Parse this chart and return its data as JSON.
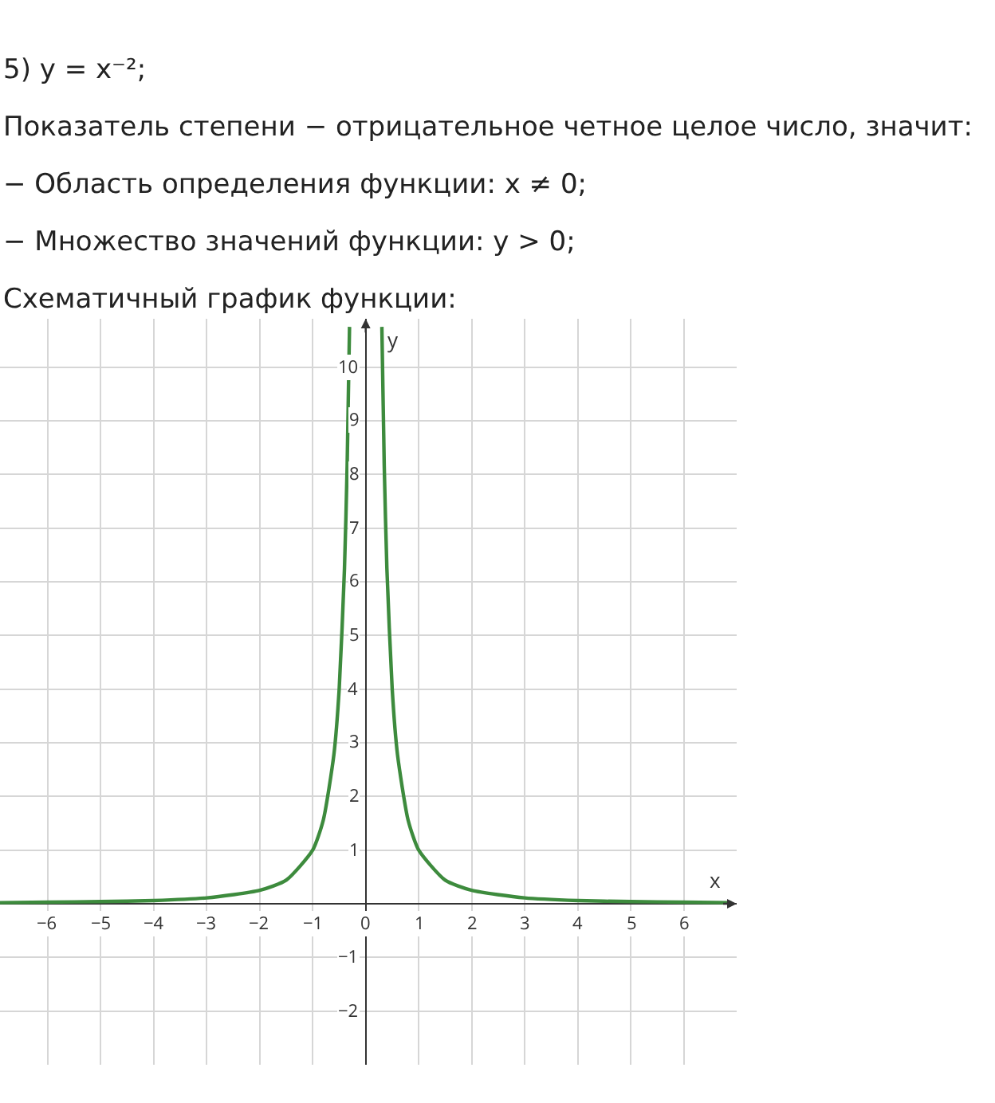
{
  "chart_data": {
    "type": "line",
    "title": "5) y = x⁻²;",
    "annotations": [
      "Показатель степени − отрицательное четное целое число, значит:",
      "− Область определения функции:  x ≠ 0;",
      "− Множество значений функции:  y > 0;",
      "Схематичный график функции:"
    ],
    "xlabel": "x",
    "ylabel": "y",
    "x": [
      -6.9,
      -6,
      -5,
      -4,
      -3,
      -2,
      -1.5,
      -1,
      -0.8,
      -0.6,
      -0.5,
      -0.4,
      -0.35,
      -0.305,
      0,
      0.305,
      0.35,
      0.4,
      0.5,
      0.6,
      0.8,
      1,
      1.5,
      2,
      3,
      4,
      5,
      6,
      6.9
    ],
    "series": [
      {
        "color": "#3d8b3d",
        "values": [
          0.02,
          0.03,
          0.04,
          0.06,
          0.11,
          0.25,
          0.44,
          1,
          1.56,
          2.78,
          4,
          6.25,
          8.16,
          10.75,
          null,
          10.75,
          8.16,
          6.25,
          4,
          2.78,
          1.56,
          1,
          0.44,
          0.25,
          0.11,
          0.06,
          0.04,
          0.03,
          0.02
        ]
      }
    ],
    "xlim": [
      -6.9,
      7
    ],
    "ylim": [
      -3,
      10.9
    ],
    "xticks": [
      {
        "value": -6,
        "label": "−6"
      },
      {
        "value": -5,
        "label": "−5"
      },
      {
        "value": -4,
        "label": "−4"
      },
      {
        "value": -3,
        "label": "−3"
      },
      {
        "value": -2,
        "label": "−2"
      },
      {
        "value": -1,
        "label": "−1"
      },
      0,
      1,
      2,
      3,
      4,
      5,
      6
    ],
    "yticks": [
      {
        "value": -2,
        "label": "−2"
      },
      {
        "value": -1,
        "label": "−1"
      },
      1,
      2,
      3,
      4,
      5,
      6,
      7,
      8,
      9,
      10
    ],
    "grid": true,
    "line_style": "solid"
  }
}
